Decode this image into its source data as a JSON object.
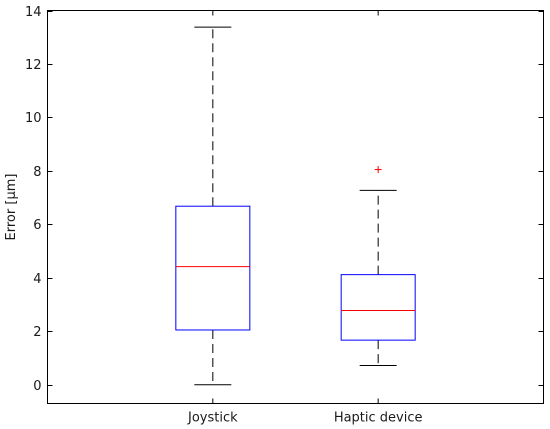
{
  "chart_data": {
    "type": "boxplot",
    "title": "",
    "xlabel": "",
    "ylabel": "Error [µm]",
    "ylim": [
      -0.7,
      14
    ],
    "yticks": [
      0,
      2,
      4,
      6,
      8,
      10,
      12,
      14
    ],
    "grid": false,
    "categories": [
      "Joystick",
      "Haptic device"
    ],
    "boxes": [
      {
        "name": "Joystick",
        "whisker_low": 0.0,
        "q1": 2.05,
        "median": 4.42,
        "q3": 6.68,
        "whisker_high": 13.38,
        "outliers": []
      },
      {
        "name": "Haptic device",
        "whisker_low": 0.72,
        "q1": 1.67,
        "median": 2.78,
        "q3": 4.12,
        "whisker_high": 7.27,
        "outliers": [
          8.05
        ]
      }
    ],
    "colors": {
      "box": "#0000ff",
      "median": "#ff0000",
      "whisker": "#000000",
      "outlier": "#ff0000"
    }
  }
}
